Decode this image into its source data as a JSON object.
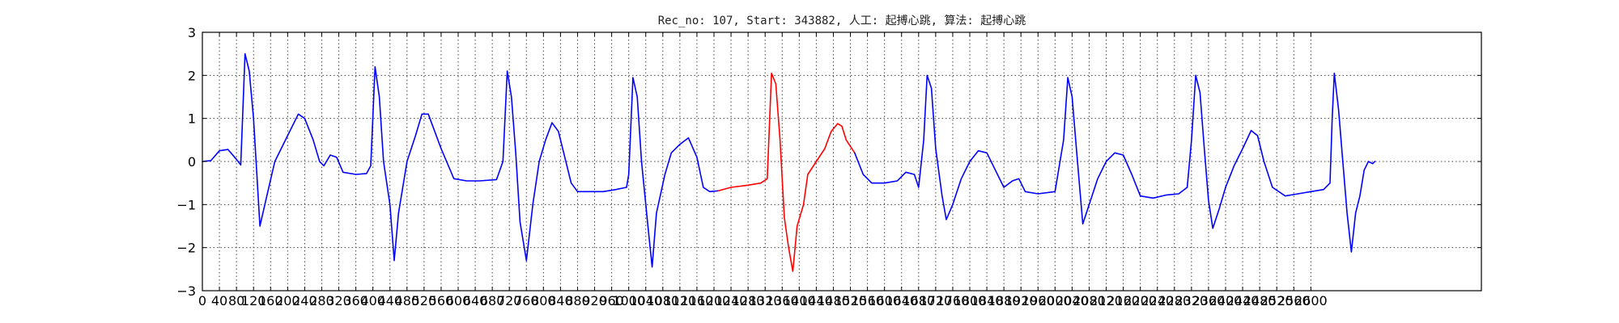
{
  "chart_data": {
    "type": "line",
    "title": "Rec_no: 107, Start: 343882, 人工: 起搏心跳, 算法: 起搏心跳",
    "xlabel": "",
    "ylabel": "",
    "xlim": [
      0,
      3000
    ],
    "ylim": [
      -3,
      3
    ],
    "grid": true,
    "x_ticks": [
      0,
      40,
      80,
      120,
      160,
      200,
      240,
      280,
      320,
      360,
      400,
      440,
      480,
      520,
      560,
      600,
      640,
      680,
      720,
      760,
      800,
      840,
      880,
      920,
      960,
      1000,
      1040,
      1080,
      1120,
      1160,
      1200,
      1240,
      1280,
      1320,
      1360,
      1400,
      1440,
      1480,
      1520,
      1560,
      1600,
      1640,
      1680,
      1720,
      1760,
      1800,
      1840,
      1880,
      1920,
      1960,
      2000,
      2040,
      2080,
      2120,
      2160,
      2200,
      2240,
      2280,
      2320,
      2360,
      2400,
      2440,
      2480,
      2520,
      2560,
      2600
    ],
    "y_ticks": [
      -3,
      -2,
      -1,
      0,
      1,
      2,
      3
    ],
    "series": [
      {
        "color": "#0000ff",
        "points": [
          [
            0,
            0
          ],
          [
            20,
            0.02
          ],
          [
            40,
            0.25
          ],
          [
            60,
            0.28
          ],
          [
            80,
            0.05
          ],
          [
            90,
            -0.08
          ],
          [
            100,
            2.5
          ],
          [
            110,
            2.1
          ],
          [
            120,
            1.0
          ],
          [
            135,
            -1.5
          ],
          [
            150,
            -0.85
          ],
          [
            170,
            0.0
          ],
          [
            200,
            0.6
          ],
          [
            225,
            1.1
          ],
          [
            240,
            1.0
          ],
          [
            260,
            0.5
          ],
          [
            275,
            0.0
          ],
          [
            285,
            -0.1
          ],
          [
            300,
            0.15
          ],
          [
            315,
            0.1
          ],
          [
            330,
            -0.25
          ],
          [
            360,
            -0.3
          ],
          [
            385,
            -0.28
          ],
          [
            395,
            -0.1
          ],
          [
            405,
            2.2
          ],
          [
            415,
            1.5
          ],
          [
            425,
            0.0
          ],
          [
            440,
            -1.0
          ],
          [
            450,
            -2.3
          ],
          [
            460,
            -1.2
          ],
          [
            480,
            0.0
          ],
          [
            500,
            0.6
          ],
          [
            515,
            1.1
          ],
          [
            530,
            1.1
          ],
          [
            560,
            0.3
          ],
          [
            590,
            -0.4
          ],
          [
            620,
            -0.45
          ],
          [
            650,
            -0.45
          ],
          [
            690,
            -0.42
          ],
          [
            705,
            0.0
          ],
          [
            715,
            2.1
          ],
          [
            725,
            1.5
          ],
          [
            735,
            0.2
          ],
          [
            745,
            -1.4
          ],
          [
            760,
            -2.3
          ],
          [
            775,
            -1.0
          ],
          [
            790,
            0.0
          ],
          [
            805,
            0.5
          ],
          [
            820,
            0.9
          ],
          [
            835,
            0.7
          ],
          [
            850,
            0.1
          ],
          [
            865,
            -0.5
          ],
          [
            880,
            -0.7
          ],
          [
            910,
            -0.7
          ],
          [
            940,
            -0.7
          ],
          [
            970,
            -0.65
          ],
          [
            995,
            -0.6
          ],
          [
            1000,
            -0.3
          ],
          [
            1010,
            1.95
          ],
          [
            1020,
            1.5
          ],
          [
            1030,
            0.0
          ],
          [
            1045,
            -1.5
          ],
          [
            1055,
            -2.45
          ],
          [
            1065,
            -1.2
          ],
          [
            1085,
            -0.3
          ],
          [
            1100,
            0.2
          ],
          [
            1120,
            0.4
          ],
          [
            1140,
            0.55
          ],
          [
            1160,
            0.1
          ],
          [
            1175,
            -0.6
          ],
          [
            1190,
            -0.7
          ],
          [
            1210,
            -0.68
          ]
        ]
      },
      {
        "color": "#ff0000",
        "points": [
          [
            1210,
            -0.68
          ],
          [
            1240,
            -0.6
          ],
          [
            1280,
            -0.55
          ],
          [
            1310,
            -0.5
          ],
          [
            1325,
            -0.4
          ],
          [
            1335,
            2.05
          ],
          [
            1345,
            1.8
          ],
          [
            1355,
            0.5
          ],
          [
            1365,
            -1.3
          ],
          [
            1375,
            -2.0
          ],
          [
            1385,
            -2.55
          ],
          [
            1395,
            -1.5
          ],
          [
            1410,
            -1.0
          ],
          [
            1420,
            -0.3
          ],
          [
            1440,
            0.0
          ],
          [
            1460,
            0.3
          ],
          [
            1475,
            0.7
          ],
          [
            1490,
            0.88
          ],
          [
            1500,
            0.82
          ],
          [
            1510,
            0.5
          ],
          [
            1530,
            0.2
          ]
        ]
      },
      {
        "color": "#0000ff",
        "points": [
          [
            1530,
            0.2
          ],
          [
            1550,
            -0.3
          ],
          [
            1570,
            -0.5
          ],
          [
            1600,
            -0.5
          ],
          [
            1630,
            -0.45
          ],
          [
            1650,
            -0.25
          ],
          [
            1670,
            -0.3
          ],
          [
            1680,
            -0.6
          ],
          [
            1692,
            0.5
          ],
          [
            1700,
            2.0
          ],
          [
            1710,
            1.7
          ],
          [
            1720,
            0.3
          ],
          [
            1735,
            -0.8
          ],
          [
            1745,
            -1.35
          ],
          [
            1760,
            -1.0
          ],
          [
            1780,
            -0.4
          ],
          [
            1800,
            0.0
          ],
          [
            1820,
            0.25
          ],
          [
            1840,
            0.2
          ],
          [
            1860,
            -0.2
          ],
          [
            1880,
            -0.6
          ],
          [
            1900,
            -0.45
          ],
          [
            1915,
            -0.4
          ],
          [
            1930,
            -0.7
          ],
          [
            1960,
            -0.75
          ],
          [
            2000,
            -0.7
          ],
          [
            2020,
            0.5
          ],
          [
            2030,
            1.95
          ],
          [
            2040,
            1.5
          ],
          [
            2050,
            0.3
          ],
          [
            2065,
            -1.45
          ],
          [
            2080,
            -1.0
          ],
          [
            2100,
            -0.4
          ],
          [
            2120,
            0.0
          ],
          [
            2140,
            0.2
          ],
          [
            2160,
            0.15
          ],
          [
            2180,
            -0.3
          ],
          [
            2200,
            -0.8
          ],
          [
            2230,
            -0.85
          ],
          [
            2260,
            -0.78
          ],
          [
            2290,
            -0.75
          ],
          [
            2310,
            -0.6
          ],
          [
            2320,
            0.5
          ],
          [
            2330,
            2.0
          ],
          [
            2340,
            1.6
          ],
          [
            2350,
            0.3
          ],
          [
            2360,
            -0.9
          ],
          [
            2370,
            -1.55
          ],
          [
            2385,
            -1.1
          ],
          [
            2400,
            -0.6
          ],
          [
            2420,
            -0.1
          ],
          [
            2440,
            0.3
          ],
          [
            2460,
            0.72
          ],
          [
            2475,
            0.6
          ],
          [
            2490,
            0.0
          ],
          [
            2510,
            -0.6
          ],
          [
            2540,
            -0.8
          ],
          [
            2570,
            -0.75
          ],
          [
            2600,
            -0.7
          ],
          [
            2630,
            -0.65
          ],
          [
            2645,
            -0.5
          ],
          [
            2650,
            1.0
          ],
          [
            2655,
            2.05
          ],
          [
            2665,
            1.2
          ],
          [
            2675,
            0.0
          ],
          [
            2685,
            -1.2
          ],
          [
            2695,
            -2.1
          ],
          [
            2705,
            -1.2
          ],
          [
            2715,
            -0.8
          ],
          [
            2725,
            -0.2
          ],
          [
            2735,
            0.0
          ],
          [
            2745,
            -0.05
          ],
          [
            2750,
            0.0
          ]
        ]
      }
    ]
  }
}
